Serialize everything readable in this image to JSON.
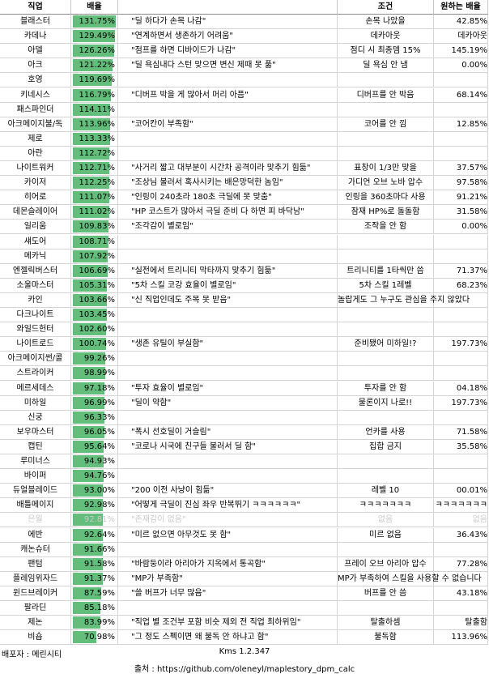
{
  "headers": {
    "job": "직업",
    "rate": "배율",
    "condition": "조건",
    "want": "원하는 배율"
  },
  "rows": [
    {
      "job": "블래스터",
      "rate": "131.75%",
      "pct": 131.75,
      "comment": "\"딜 하다가 손목 나감\"",
      "condition": "손목 나았을",
      "want": "42.85%"
    },
    {
      "job": "카데나",
      "rate": "129.49%",
      "pct": 129.49,
      "comment": "\"연계하면서 생존하기 어려움\"",
      "condition": "데카아웃",
      "want": "데카아웃"
    },
    {
      "job": "아델",
      "rate": "126.26%",
      "pct": 126.26,
      "comment": "\"점프를 하면 디바이드가 나감\"",
      "condition": "점디 시 최종뎀 15%",
      "want": "145.19%"
    },
    {
      "job": "아크",
      "rate": "121.22%",
      "pct": 121.22,
      "comment": "\"딜 욕심내다 스턴 맞으면 변신 제때 못 풂\"",
      "condition": "딜 욕심 안 냄",
      "want": "0.00%"
    },
    {
      "job": "호영",
      "rate": "119.69%",
      "pct": 119.69,
      "comment": "",
      "condition": "",
      "want": ""
    },
    {
      "job": "키네시스",
      "rate": "116.79%",
      "pct": 116.79,
      "comment": "\"디버프 박을 게 많아서 머리 아픔\"",
      "condition": "디버프를 안 박음",
      "want": "68.14%"
    },
    {
      "job": "패스파인더",
      "rate": "114.11%",
      "pct": 114.11,
      "comment": "",
      "condition": "",
      "want": ""
    },
    {
      "job": "아크메이지불/독",
      "rate": "113.96%",
      "pct": 113.96,
      "comment": "\"코어칸이 부족함\"",
      "condition": "코어를 안 낌",
      "want": "12.85%"
    },
    {
      "job": "제로",
      "rate": "113.33%",
      "pct": 113.33,
      "comment": "",
      "condition": "",
      "want": ""
    },
    {
      "job": "아란",
      "rate": "112.72%",
      "pct": 112.72,
      "comment": "",
      "condition": "",
      "want": ""
    },
    {
      "job": "나이트워커",
      "rate": "112.71%",
      "pct": 112.71,
      "comment": "\"사거리 짧고 대부분이 시간차 공격이라 맞추기 힘듦\"",
      "condition": "표창이 1/3만 맞을",
      "want": "37.57%"
    },
    {
      "job": "카이저",
      "rate": "112.25%",
      "pct": 112.25,
      "comment": "\"조상님 불러서 혹사시키는 배은망덕한 놈임\"",
      "condition": "가디언 오브 노바 압수",
      "want": "97.58%"
    },
    {
      "job": "히어로",
      "rate": "111.07%",
      "pct": 111.07,
      "comment": "\"인링이 240초라 180초 극딜에 못 맞춤\"",
      "condition": "인링을 360초마다 사용",
      "want": "91.21%"
    },
    {
      "job": "데몬슬레이어",
      "rate": "111.02%",
      "pct": 111.02,
      "comment": "\"HP 코스트가 많아서 극딜 준비 다 하면 피 바닥남\"",
      "condition": "잠재 HP%로 돌돌함",
      "want": "31.58%"
    },
    {
      "job": "일리움",
      "rate": "109.83%",
      "pct": 109.83,
      "comment": "\"조각감이 별로임\"",
      "condition": "조작을 안 함",
      "want": "0.00%"
    },
    {
      "job": "섀도어",
      "rate": "108.71%",
      "pct": 108.71,
      "comment": "",
      "condition": "",
      "want": ""
    },
    {
      "job": "메카닉",
      "rate": "107.92%",
      "pct": 107.92,
      "comment": "",
      "condition": "",
      "want": ""
    },
    {
      "job": "엔젤릭버스터",
      "rate": "106.69%",
      "pct": 106.69,
      "comment": "\"실전에서 트리니티 막타까지 맞추기 힘듦\"",
      "condition": "트리니티를 1타씩만 씀",
      "want": "71.37%"
    },
    {
      "job": "소울마스터",
      "rate": "105.31%",
      "pct": 105.31,
      "comment": "\"5차 스킬 코강 효율이 별로임\"",
      "condition": "5차 스킬 1레벨",
      "want": "68.23%"
    },
    {
      "job": "카인",
      "rate": "103.66%",
      "pct": 103.66,
      "comment": "\"신 직업인데도 주목 못 받음\"",
      "condition": "놀랍게도 그 누구도 관심을 주지 않았다",
      "want": ""
    },
    {
      "job": "다크나이트",
      "rate": "103.45%",
      "pct": 103.45,
      "comment": "",
      "condition": "",
      "want": ""
    },
    {
      "job": "와일드헌터",
      "rate": "102.60%",
      "pct": 102.6,
      "comment": "",
      "condition": "",
      "want": ""
    },
    {
      "job": "나이트로드",
      "rate": "100.74%",
      "pct": 100.74,
      "comment": "\"생존 유틸이 부실함\"",
      "condition": "준비됐어 미하일!?",
      "want": "197.73%"
    },
    {
      "job": "아크메이지썬/콜",
      "rate": "99.26%",
      "pct": 99.26,
      "comment": "",
      "condition": "",
      "want": ""
    },
    {
      "job": "스트라이커",
      "rate": "98.99%",
      "pct": 98.99,
      "comment": "",
      "condition": "",
      "want": ""
    },
    {
      "job": "메르세데스",
      "rate": "97.18%",
      "pct": 97.18,
      "comment": "\"투자 효율이 별로임\"",
      "condition": "투자를 안 함",
      "want": "04.18%"
    },
    {
      "job": "미하일",
      "rate": "96.99%",
      "pct": 96.99,
      "comment": "\"딜이 약함\"",
      "condition": "물론이지 나로!!",
      "want": "197.73%"
    },
    {
      "job": "신궁",
      "rate": "96.33%",
      "pct": 96.33,
      "comment": "",
      "condition": "",
      "want": ""
    },
    {
      "job": "보우마스터",
      "rate": "96.05%",
      "pct": 96.05,
      "comment": "\"폭시 선호딜이 거슬림\"",
      "condition": "언카를 사용",
      "want": "71.58%"
    },
    {
      "job": "캡틴",
      "rate": "95.64%",
      "pct": 95.64,
      "comment": "\"코로나 시국에 친구들 불러서 딜 함\"",
      "condition": "집합 금지",
      "want": "35.58%"
    },
    {
      "job": "루미너스",
      "rate": "94.93%",
      "pct": 94.93,
      "comment": "",
      "condition": "",
      "want": ""
    },
    {
      "job": "바이퍼",
      "rate": "94.76%",
      "pct": 94.76,
      "comment": "",
      "condition": "",
      "want": ""
    },
    {
      "job": "듀얼블레이드",
      "rate": "93.00%",
      "pct": 93.0,
      "comment": "\"200 이전 사냥이 힘듦\"",
      "condition": "레벨 10",
      "want": "00.01%"
    },
    {
      "job": "배틀메이지",
      "rate": "92.98%",
      "pct": 92.98,
      "comment": "\"어떻게 극딜이 진심 좌우 반복뛰기 ㅋㅋㅋㅋㅋㅋ\"",
      "condition": "ㅋㅋㅋㅋㅋㅋㅋ",
      "want": "ㅋㅋㅋㅋㅋㅋㅋ"
    },
    {
      "job": "은월",
      "rate": "92.81%",
      "pct": 92.81,
      "comment": "\"존재감이 없음\"",
      "condition": "없음",
      "want": "없음",
      "faded": true
    },
    {
      "job": "에반",
      "rate": "92.64%",
      "pct": 92.64,
      "comment": "\"미르 없으면 아무것도 못 함\"",
      "condition": "미르 없음",
      "want": "36.43%"
    },
    {
      "job": "캐논슈터",
      "rate": "91.66%",
      "pct": 91.66,
      "comment": "",
      "condition": "",
      "want": ""
    },
    {
      "job": "팬텀",
      "rate": "91.58%",
      "pct": 91.58,
      "comment": "\"바람둥이라 아리아가 지옥에서 통곡함\"",
      "condition": "프레이 오브 아리아 압수",
      "want": "77.28%"
    },
    {
      "job": "플레임위자드",
      "rate": "91.37%",
      "pct": 91.37,
      "comment": "\"MP가 부족함\"",
      "condition": "MP가 부족하여 스킬을 사용할 수 없습니다",
      "want": ""
    },
    {
      "job": "윈드브레이커",
      "rate": "87.59%",
      "pct": 87.59,
      "comment": "\"쓸 버프가 너무 많음\"",
      "condition": "버프를 안 씀",
      "want": "43.18%"
    },
    {
      "job": "팔라딘",
      "rate": "85.18%",
      "pct": 85.18,
      "comment": "",
      "condition": "",
      "want": ""
    },
    {
      "job": "제논",
      "rate": "83.99%",
      "pct": 83.99,
      "comment": "\"직업 별 조건부 포함 비슷 제외 전 직업 최하위임\"",
      "condition": "탈출하셈",
      "want": "탈출함"
    },
    {
      "job": "비숍",
      "rate": "70.98%",
      "pct": 70.98,
      "comment": "\"그 정도 스펙이면 왜 불독 안 하냐고 함\"",
      "condition": "불독함",
      "want": "113.96%"
    }
  ],
  "footer": {
    "distributor": "배포자 : 메린시티",
    "version": "Kms 1.2.347",
    "source": "출처 : https://github.com/oleneyl/maplestory_dpm_calc"
  },
  "colors": {
    "bar": "#63be7b"
  }
}
